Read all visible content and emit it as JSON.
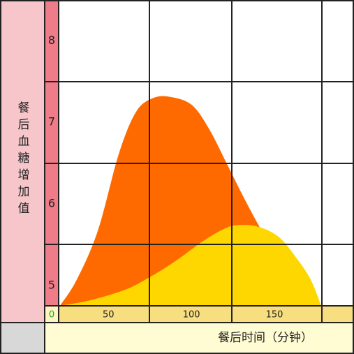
{
  "chart_data": {
    "type": "area",
    "ylabel": "餐后血糖增加值",
    "xlabel": "餐后时间（分钟）",
    "origin_label": "0",
    "xlim": [
      20,
      195
    ],
    "xticks": [
      50,
      100,
      150
    ],
    "ylim": [
      4.75,
      8.5
    ],
    "yticks": [
      5,
      6,
      7,
      8
    ],
    "series": [
      {
        "color": "#ff6a00",
        "x": [
          20.8,
          30.9,
          43.6,
          56.2,
          66.7,
          77.2,
          87.8,
          100.4,
          110.9,
          121.4,
          132.0,
          142.4,
          153.0,
          165.6,
          178.2
        ],
        "values": [
          4.75,
          5.07,
          5.67,
          6.61,
          7.13,
          7.3,
          7.31,
          7.21,
          6.91,
          6.49,
          6.06,
          5.67,
          5.33,
          4.99,
          4.75
        ]
      },
      {
        "color": "#ffd700",
        "x": [
          20.8,
          39.4,
          60.4,
          74.7,
          89.8,
          106.7,
          119.3,
          127.7,
          140.3,
          152.9,
          163.5,
          171.9,
          178.2
        ],
        "values": [
          4.75,
          4.82,
          4.95,
          5.1,
          5.29,
          5.54,
          5.69,
          5.74,
          5.72,
          5.59,
          5.33,
          5.07,
          4.75
        ]
      }
    ]
  }
}
